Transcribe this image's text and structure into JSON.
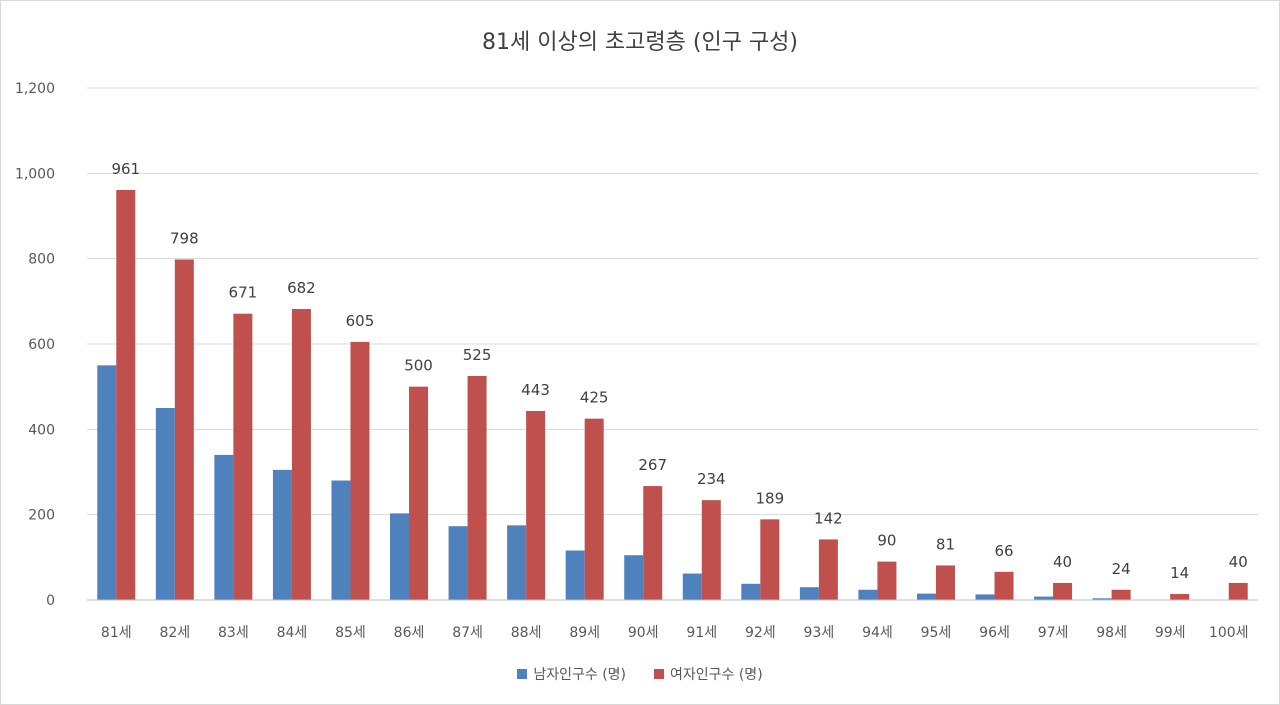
{
  "chart_data": {
    "type": "bar",
    "title": "81세 이상의 초고령층 (인구 구성)",
    "categories": [
      "81세",
      "82세",
      "83세",
      "84세",
      "85세",
      "86세",
      "87세",
      "88세",
      "89세",
      "90세",
      "91세",
      "92세",
      "93세",
      "94세",
      "95세",
      "96세",
      "97세",
      "98세",
      "99세",
      "100세"
    ],
    "series": [
      {
        "name": "남자인구수 (명)",
        "color": "#4F81BD",
        "values": [
          550,
          450,
          340,
          305,
          280,
          203,
          173,
          175,
          116,
          105,
          62,
          38,
          30,
          24,
          15,
          13,
          8,
          4,
          0,
          0
        ],
        "show_labels": false
      },
      {
        "name": "여자인구수 (명)",
        "color": "#C0504D",
        "values": [
          961,
          798,
          671,
          682,
          605,
          500,
          525,
          443,
          425,
          267,
          234,
          189,
          142,
          90,
          81,
          66,
          40,
          24,
          14,
          40
        ],
        "show_labels": true
      }
    ],
    "xlabel": "",
    "ylabel": "",
    "ylim": [
      0,
      1200
    ],
    "yticks": [
      "0",
      "200",
      "400",
      "600",
      "800",
      "1,000",
      "1,200"
    ],
    "ytick_values": [
      0,
      200,
      400,
      600,
      800,
      1000,
      1200
    ],
    "grid": true,
    "legend_position": "bottom"
  }
}
